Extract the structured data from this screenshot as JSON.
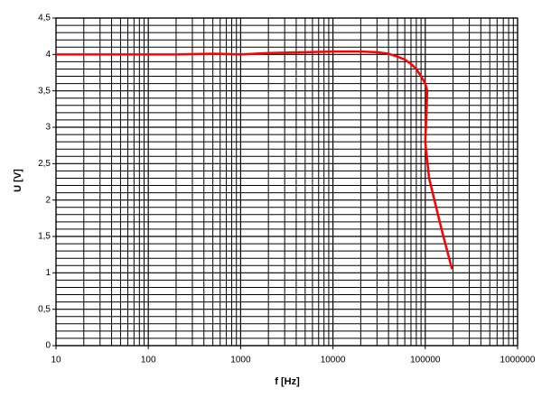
{
  "chart_data": {
    "type": "line",
    "x_label": "f [Hz]",
    "y_label": "U [V]",
    "x": [
      10,
      100,
      200,
      500,
      1000,
      2000,
      5000,
      10000,
      20000,
      30000,
      40000,
      50000,
      60000,
      70000,
      80000,
      90000,
      100000,
      105000,
      103000,
      100000,
      110000,
      150000,
      195000
    ],
    "values": [
      4.0,
      4.0,
      4.0,
      4.01,
      4.0,
      4.02,
      4.03,
      4.04,
      4.04,
      4.03,
      4.01,
      3.97,
      3.93,
      3.87,
      3.8,
      3.7,
      3.6,
      3.5,
      3.2,
      2.8,
      2.3,
      1.6,
      1.05
    ],
    "color": "#ff0000",
    "xlog": true,
    "xlim": [
      10,
      1000000
    ],
    "xticks": [
      10,
      100,
      1000,
      10000,
      100000,
      1000000
    ],
    "ylim": [
      0,
      4.5
    ],
    "yticks": [
      0,
      {
        "value": 0.5,
        "label": "0,5"
      },
      1,
      {
        "value": 1.5,
        "label": "1,5"
      },
      2,
      {
        "value": 2.5,
        "label": "2,5"
      },
      3,
      {
        "value": 3.5,
        "label": "3,5"
      },
      4,
      {
        "value": 4.5,
        "label": "4,5"
      }
    ],
    "grid": true,
    "minor_grid": true
  }
}
